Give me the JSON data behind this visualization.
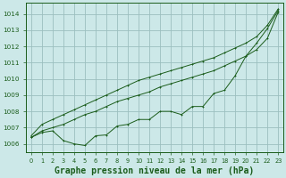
{
  "background_color": "#cce8e8",
  "grid_color": "#9bbfbf",
  "line_color": "#1a5c1a",
  "marker_color": "#1a5c1a",
  "title": "Graphe pression niveau de la mer (hPa)",
  "title_fontsize": 7.0,
  "ylim": [
    1005.5,
    1014.7
  ],
  "xlim": [
    -0.5,
    23.5
  ],
  "yticks": [
    1006,
    1007,
    1008,
    1009,
    1010,
    1011,
    1012,
    1013,
    1014
  ],
  "xticks": [
    0,
    1,
    2,
    3,
    4,
    5,
    6,
    7,
    8,
    9,
    10,
    11,
    12,
    13,
    14,
    15,
    16,
    17,
    18,
    19,
    20,
    21,
    22,
    23
  ],
  "series_upper": [
    1006.5,
    1007.2,
    1007.5,
    1007.8,
    1008.1,
    1008.4,
    1008.7,
    1009.0,
    1009.3,
    1009.6,
    1009.9,
    1010.1,
    1010.3,
    1010.5,
    1010.7,
    1010.9,
    1011.1,
    1011.3,
    1011.6,
    1011.9,
    1012.2,
    1012.6,
    1013.3,
    1014.3
  ],
  "series_lower": [
    1006.4,
    1006.8,
    1007.0,
    1007.2,
    1007.5,
    1007.8,
    1008.0,
    1008.3,
    1008.6,
    1008.8,
    1009.0,
    1009.2,
    1009.5,
    1009.7,
    1009.9,
    1010.1,
    1010.3,
    1010.5,
    1010.8,
    1011.1,
    1011.4,
    1011.8,
    1012.5,
    1014.1
  ],
  "series_zigzag": [
    1006.4,
    1006.7,
    1006.8,
    1006.2,
    1006.0,
    1005.9,
    1006.5,
    1006.55,
    1007.1,
    1007.2,
    1007.5,
    1007.5,
    1008.0,
    1008.0,
    1007.8,
    1008.3,
    1008.3,
    1009.1,
    1009.3,
    1010.2,
    1011.4,
    1012.2,
    1013.1,
    1014.2
  ]
}
